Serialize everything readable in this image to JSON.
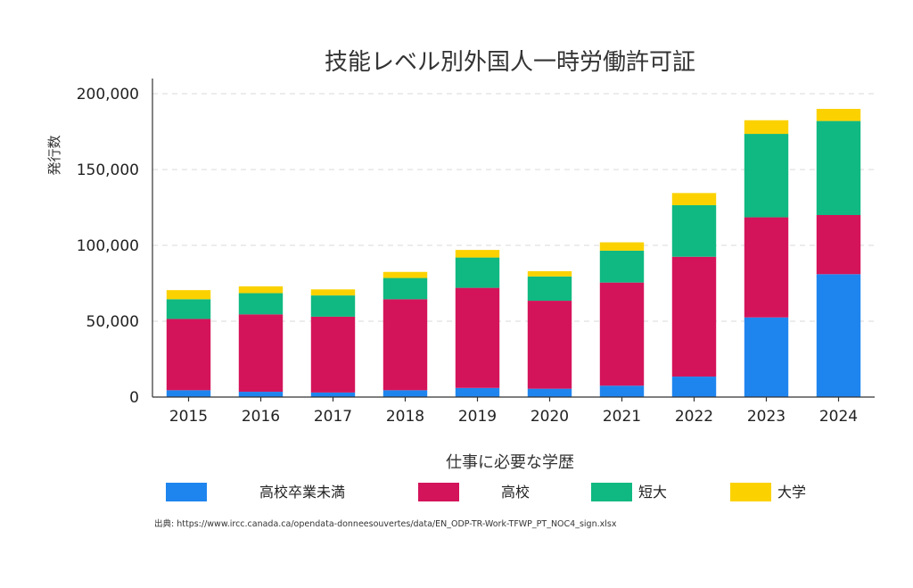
{
  "chart_data": {
    "type": "bar",
    "stacked": true,
    "title": "技能レベル別外国人一時労働許可証",
    "ylabel": "発行数",
    "xlabel": "",
    "ylim": [
      0,
      210000
    ],
    "yticks": [
      0,
      50000,
      100000,
      150000,
      200000
    ],
    "ytick_labels": [
      "0",
      "50,000",
      "100,000",
      "150,000",
      "200,000"
    ],
    "grid": true,
    "categories": [
      "2015",
      "2016",
      "2017",
      "2018",
      "2019",
      "2020",
      "2021",
      "2022",
      "2023",
      "2024"
    ],
    "legend_title": "仕事に必要な学歴",
    "legend_position": "bottom",
    "series": [
      {
        "name": "高校卒業未満",
        "color": "#1f85ee",
        "values": [
          4500,
          3500,
          3000,
          4500,
          6000,
          5500,
          7500,
          13500,
          52500,
          81000
        ]
      },
      {
        "name": "高校",
        "color": "#d4145a",
        "values": [
          47000,
          51000,
          50000,
          60000,
          66000,
          58000,
          68000,
          79000,
          66000,
          39000
        ]
      },
      {
        "name": "短大",
        "color": "#10b981",
        "values": [
          13000,
          14000,
          14000,
          14000,
          20000,
          16000,
          21000,
          34000,
          55000,
          62000
        ]
      },
      {
        "name": "大学",
        "color": "#fbd200",
        "values": [
          6000,
          4500,
          4000,
          4000,
          5000,
          3500,
          5500,
          8000,
          9000,
          8000
        ]
      }
    ]
  },
  "source_note": "出典: https://www.ircc.canada.ca/opendata-donneesouvertes/data/EN_ODP-TR-Work-TFWP_PT_NOC4_sign.xlsx"
}
